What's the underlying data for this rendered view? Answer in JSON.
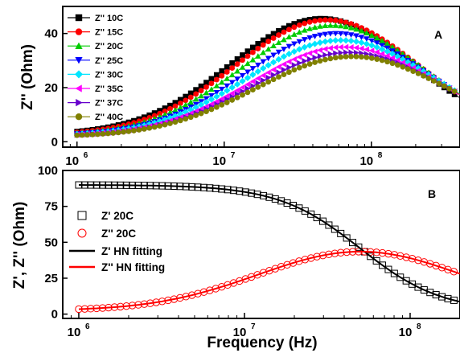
{
  "chart_data": [
    {
      "panel_label": "A",
      "type": "scatter",
      "ylabel": "Z'' (Ohm)",
      "xscale": "log",
      "xlim": [
        800000,
        400000000
      ],
      "ylim": [
        -2,
        50
      ],
      "xticks": [
        1000000,
        10000000,
        100000000
      ],
      "xtick_labels": [
        "10",
        "10",
        "10"
      ],
      "xtick_exponents": [
        "6",
        "7",
        "8"
      ],
      "yticks": [
        0,
        20,
        40
      ],
      "ytick_labels": [
        "0",
        "20",
        "40"
      ],
      "legend_placement": "top-left",
      "series": [
        {
          "name": "Z'' 10C",
          "color": "#000000",
          "marker": "square",
          "peak_freq_hz": 46000000,
          "peak_value": 45.5,
          "width_decades": 1.0,
          "lowfreq_value": 2.6
        },
        {
          "name": "Z'' 15C",
          "color": "#ff0000",
          "marker": "circle",
          "peak_freq_hz": 50000000,
          "peak_value": 45.0,
          "width_decades": 1.0,
          "lowfreq_value": 2.5
        },
        {
          "name": "Z'' 20C",
          "color": "#00cc00",
          "marker": "triangle-up",
          "peak_freq_hz": 54000000,
          "peak_value": 43.0,
          "width_decades": 1.0,
          "lowfreq_value": 2.4
        },
        {
          "name": "Z'' 25C",
          "color": "#0000ff",
          "marker": "triangle-down",
          "peak_freq_hz": 58000000,
          "peak_value": 40.0,
          "width_decades": 1.0,
          "lowfreq_value": 2.3
        },
        {
          "name": "Z'' 30C",
          "color": "#00e5ff",
          "marker": "diamond",
          "peak_freq_hz": 62000000,
          "peak_value": 37.5,
          "width_decades": 1.02,
          "lowfreq_value": 2.2
        },
        {
          "name": "Z'' 35C",
          "color": "#ff00ff",
          "marker": "triangle-left",
          "peak_freq_hz": 66000000,
          "peak_value": 35.0,
          "width_decades": 1.02,
          "lowfreq_value": 2.1
        },
        {
          "name": "Z'' 37C",
          "color": "#6600cc",
          "marker": "triangle-right",
          "peak_freq_hz": 70000000,
          "peak_value": 33.0,
          "width_decades": 1.04,
          "lowfreq_value": 2.0
        },
        {
          "name": "Z'' 40C",
          "color": "#808000",
          "marker": "circle",
          "peak_freq_hz": 74000000,
          "peak_value": 31.5,
          "width_decades": 1.05,
          "lowfreq_value": 1.9
        }
      ]
    },
    {
      "panel_label": "B",
      "type": "scatter",
      "xlabel": "Frequency (Hz)",
      "ylabel": "Z', Z'' (Ohm)",
      "xscale": "log",
      "xlim": [
        800000,
        200000000
      ],
      "ylim": [
        -3,
        100
      ],
      "xticks": [
        1000000,
        10000000,
        100000000
      ],
      "xtick_labels": [
        "10",
        "10",
        "10"
      ],
      "xtick_exponents": [
        "6",
        "7",
        "8"
      ],
      "yticks": [
        0,
        25,
        50,
        75,
        100
      ],
      "ytick_labels": [
        "0",
        "25",
        "50",
        "75",
        "100"
      ],
      "legend_placement": "center-left",
      "series": [
        {
          "name": "Z' 20C",
          "color": "#000000",
          "marker": "square-open",
          "kind": "real",
          "r_inf": 1.5,
          "delta": 88.5,
          "tau_freq_hz": 50000000,
          "alpha": 0.88
        },
        {
          "name": "Z'' 20C",
          "color": "#ff0000",
          "marker": "circle-open",
          "kind": "imag",
          "peak_freq_hz": 50000000,
          "peak_value": 43.5,
          "width_decades": 1.0,
          "lowfreq_value": 2.5
        },
        {
          "name": "Z'  HN fitting",
          "color": "#000000",
          "marker": "line",
          "kind": "real-fit"
        },
        {
          "name": "Z'' HN fitting",
          "color": "#ff0000",
          "marker": "line",
          "kind": "imag-fit"
        }
      ]
    }
  ]
}
